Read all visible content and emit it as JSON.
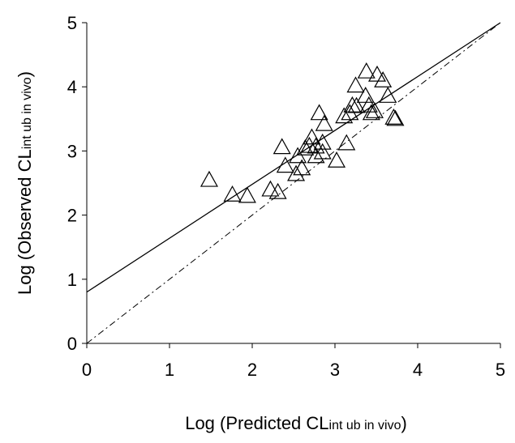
{
  "chart_data": {
    "type": "scatter",
    "xlabel": [
      "Log (Predicted CL",
      "int ub in vivo",
      ")"
    ],
    "ylabel": [
      "Log (Observed CL",
      "int ub in vivo",
      ")"
    ],
    "x": [
      1.48,
      1.76,
      1.94,
      2.22,
      2.31,
      2.36,
      2.4,
      2.53,
      2.6,
      2.55,
      2.64,
      2.69,
      2.72,
      2.77,
      2.77,
      2.85,
      2.85,
      2.81,
      2.87,
      3.02,
      3.14,
      3.11,
      3.18,
      3.21,
      3.25,
      3.26,
      3.37,
      3.38,
      3.41,
      3.44,
      3.48,
      3.51,
      3.58,
      3.64,
      3.71,
      3.73
    ],
    "values": [
      2.55,
      2.32,
      2.3,
      2.4,
      2.36,
      3.06,
      2.77,
      2.64,
      2.73,
      2.92,
      3.04,
      3.08,
      3.21,
      3.07,
      2.92,
      2.98,
      3.13,
      3.59,
      3.42,
      2.85,
      3.12,
      3.54,
      3.59,
      3.71,
      4.02,
      3.7,
      3.86,
      4.24,
      3.71,
      3.59,
      3.62,
      4.19,
      4.1,
      3.86,
      3.52,
      3.5
    ],
    "color": "#000000",
    "lines": [
      {
        "x": [
          0,
          5
        ],
        "y": [
          0.8,
          5
        ],
        "dashed": false
      },
      {
        "x": [
          0,
          5
        ],
        "y": [
          0,
          5
        ],
        "dashed": true
      }
    ],
    "xlim": [
      0,
      5
    ],
    "ylim": [
      0,
      5
    ],
    "xticks": [
      0,
      1,
      2,
      3,
      4,
      5
    ],
    "yticks": [
      0,
      1,
      2,
      3,
      4,
      5
    ]
  }
}
